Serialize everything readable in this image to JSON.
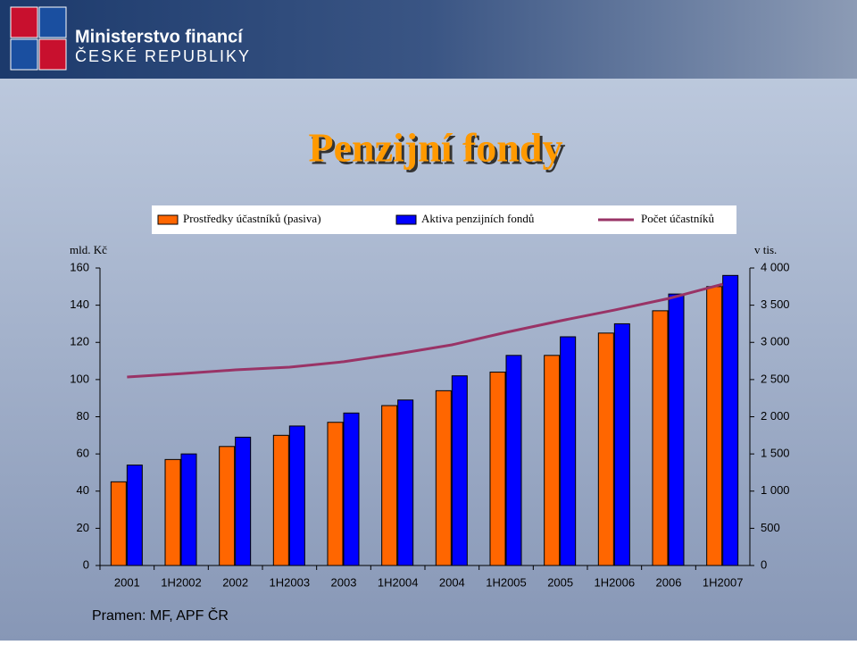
{
  "header": {
    "ministry": "Ministerstvo financí",
    "country": "ČESKÉ REPUBLIKY"
  },
  "chart_data": {
    "type": "bar",
    "title": "Penzijní fondy",
    "y_label": "mld. Kč",
    "y2_label": "v tis.",
    "categories": [
      "2001",
      "1H2002",
      "2002",
      "1H2003",
      "2003",
      "1H2004",
      "2004",
      "1H2005",
      "2005",
      "1H2006",
      "2006",
      "1H2007"
    ],
    "series": [
      {
        "name": "Prostředky účastníků (pasiva)",
        "type": "bar",
        "color": "#ff6600",
        "values": [
          45,
          57,
          64,
          70,
          77,
          86,
          94,
          104,
          113,
          125,
          137,
          150
        ]
      },
      {
        "name": "Aktiva penzijních fondů",
        "type": "bar",
        "color": "#0000ff",
        "values": [
          54,
          60,
          69,
          75,
          82,
          89,
          102,
          113,
          123,
          130,
          146,
          156
        ]
      },
      {
        "name": "Počet účastníků",
        "type": "line",
        "color": "#993366",
        "axis": "y2",
        "values": [
          2535,
          2580,
          2630,
          2667,
          2740,
          2847,
          2967,
          3135,
          3290,
          3435,
          3590,
          3783
        ]
      }
    ],
    "ylim": [
      0,
      160
    ],
    "yticks": [
      0,
      20,
      40,
      60,
      80,
      100,
      120,
      140,
      160
    ],
    "y2lim": [
      0,
      4000
    ],
    "y2ticks": [
      0,
      500,
      {
        "value": 1000,
        "label": "1 000"
      },
      {
        "value": 1500,
        "label": "1 500"
      },
      {
        "value": 2000,
        "label": "2 000"
      },
      {
        "value": 2500,
        "label": "2 500"
      },
      {
        "value": 3000,
        "label": "3 000"
      },
      {
        "value": 3500,
        "label": "3 500"
      },
      {
        "value": 4000,
        "label": "4 000"
      }
    ],
    "legend": "top"
  },
  "source": "Pramen: MF, APF ČR"
}
